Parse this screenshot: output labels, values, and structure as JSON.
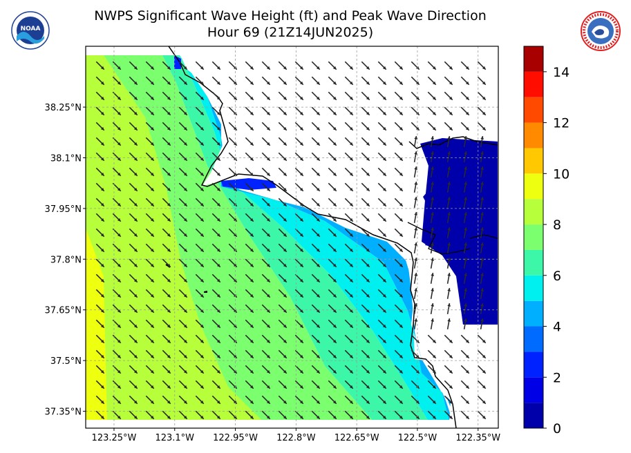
{
  "header": {
    "title_line1": "NWPS Significant Wave Height (ft) and Peak Wave Direction",
    "title_line2": "Hour 69 (21Z14JUN2025)",
    "left_logo": "noaa-logo",
    "right_logo": "national-weather-service-logo"
  },
  "chart_data": {
    "type": "heatmap",
    "title": "NWPS Significant Wave Height (ft) and Peak Wave Direction",
    "subtitle": "Hour 69 (21Z14JUN2025)",
    "x_ticks": [
      "123.25°W",
      "123.1°W",
      "122.95°W",
      "122.8°W",
      "122.65°W",
      "122.5°W",
      "122.35°W"
    ],
    "x_tick_values": [
      -123.25,
      -123.1,
      -122.95,
      -122.8,
      -122.65,
      -122.5,
      -122.35
    ],
    "y_ticks": [
      "38.25°N",
      "38.1°N",
      "37.95°N",
      "37.8°N",
      "37.65°N",
      "37.5°N",
      "37.35°N"
    ],
    "y_tick_values": [
      38.25,
      38.1,
      37.95,
      37.8,
      37.65,
      37.5,
      37.35
    ],
    "xlim": [
      -123.32,
      -122.3
    ],
    "ylim": [
      37.3,
      38.43
    ],
    "grid": true,
    "colorbar": {
      "ticks": [
        "0",
        "2",
        "4",
        "6",
        "8",
        "10",
        "12",
        "14"
      ],
      "tick_values": [
        0,
        2,
        4,
        6,
        8,
        10,
        12,
        14
      ],
      "range": [
        0,
        15
      ],
      "levels": [
        {
          "from": 0,
          "to": 1,
          "color": "#0000aa"
        },
        {
          "from": 1,
          "to": 2,
          "color": "#0000e6"
        },
        {
          "from": 2,
          "to": 3,
          "color": "#0022ff"
        },
        {
          "from": 3,
          "to": 4,
          "color": "#006cff"
        },
        {
          "from": 4,
          "to": 5,
          "color": "#00b0ff"
        },
        {
          "from": 5,
          "to": 6,
          "color": "#00f0f0"
        },
        {
          "from": 6,
          "to": 7,
          "color": "#3cf7a8"
        },
        {
          "from": 7,
          "to": 8,
          "color": "#7cff6e"
        },
        {
          "from": 8,
          "to": 9,
          "color": "#b6ff3a"
        },
        {
          "from": 9,
          "to": 10,
          "color": "#eeff10"
        },
        {
          "from": 10,
          "to": 11,
          "color": "#ffc800"
        },
        {
          "from": 11,
          "to": 12,
          "color": "#ff8a00"
        },
        {
          "from": 12,
          "to": 13,
          "color": "#ff4a00"
        },
        {
          "from": 13,
          "to": 14,
          "color": "#ff0e00"
        },
        {
          "from": 14,
          "to": 15,
          "color": "#a80000"
        }
      ]
    },
    "wave_height_bands_ft": [
      {
        "region": "far offshore western edge",
        "value": 9.5
      },
      {
        "region": "offshore",
        "value": 8.5
      },
      {
        "region": "mid shelf",
        "value": 7.5
      },
      {
        "region": "inner shelf",
        "value": 6.5
      },
      {
        "region": "near coast",
        "value": 5.5
      },
      {
        "region": "coastal strip",
        "value": 4.5
      },
      {
        "region": "bays and inner waters",
        "value": 0.5
      }
    ],
    "peak_wave_direction": "arrows point toward the southeast offshore, turning toward the north-northeast in the bays"
  }
}
